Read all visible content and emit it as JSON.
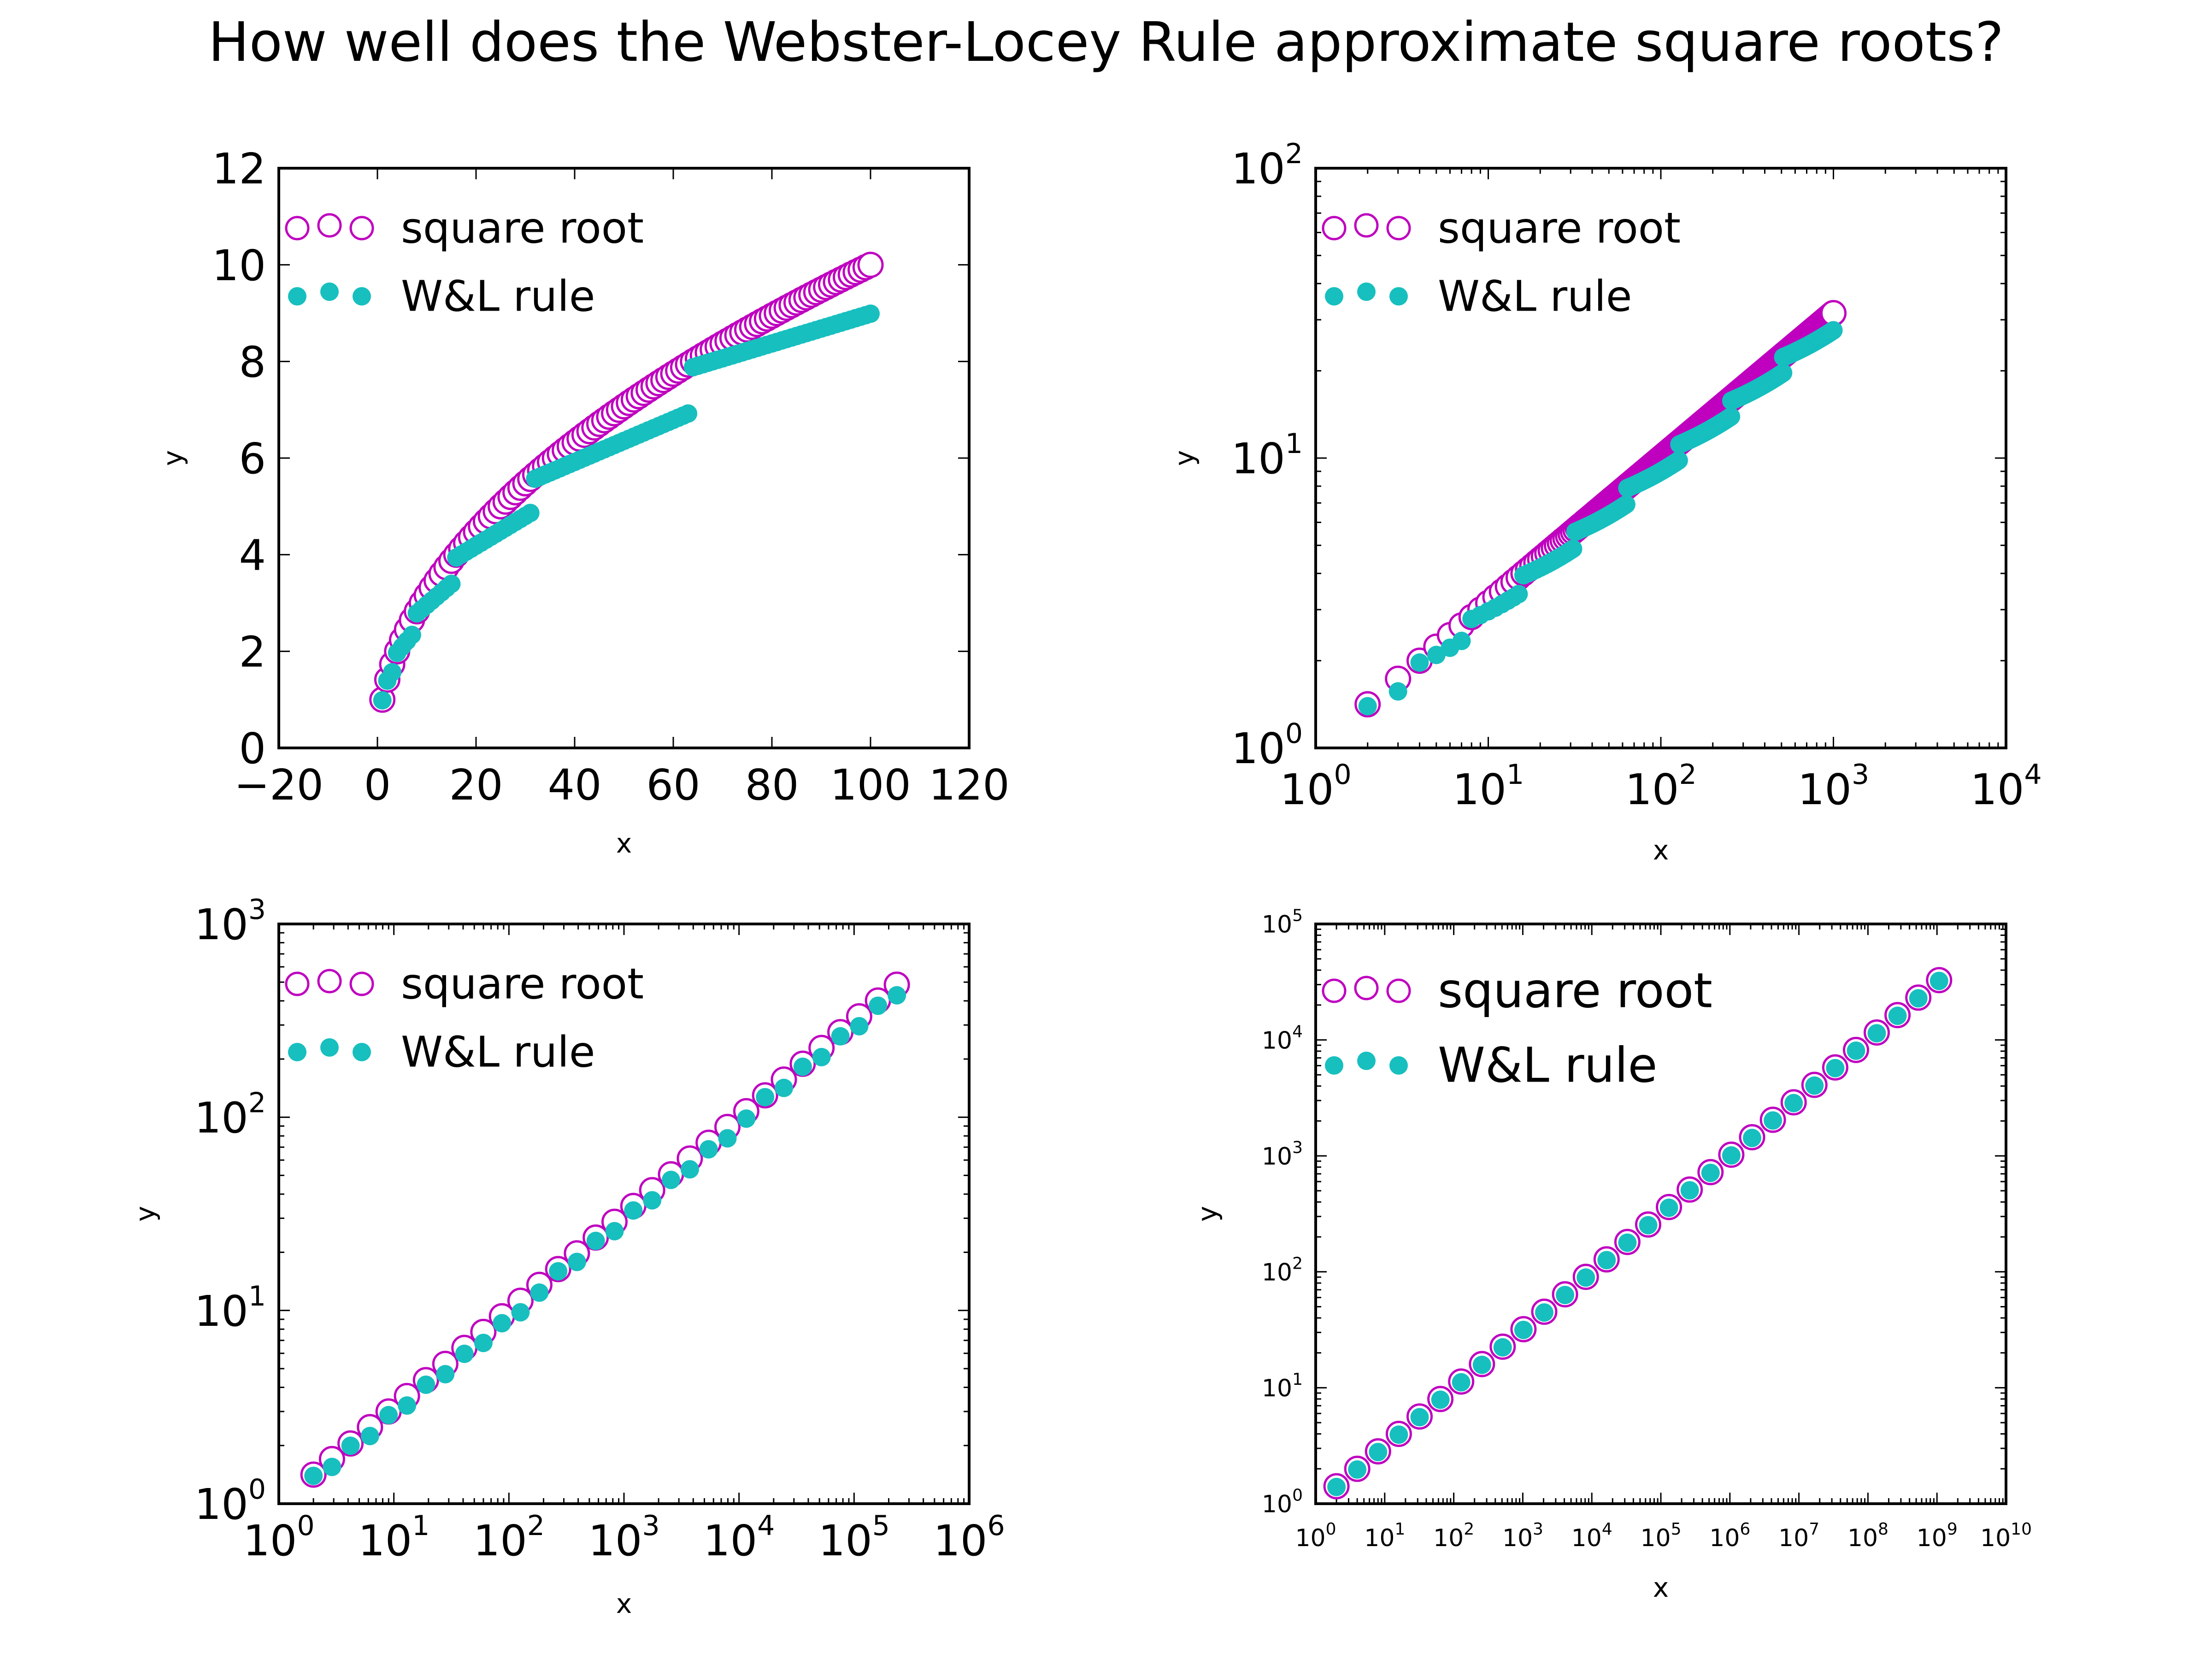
{
  "title": "How well does the Webster-Locey Rule approximate square roots?",
  "colors": {
    "sqrt_edge": "#bf00bf",
    "wl_fill": "#17bfbf",
    "axes": "#000000"
  },
  "chart_data": [
    {
      "type": "scatter",
      "xlabel": "x",
      "ylabel": "y",
      "xscale": "linear",
      "yscale": "linear",
      "xlim": [
        -20,
        120
      ],
      "ylim": [
        0,
        12
      ],
      "xticks": [
        -20,
        0,
        20,
        40,
        60,
        80,
        100,
        120
      ],
      "xtick_labels": [
        "−20",
        "0",
        "20",
        "40",
        "60",
        "80",
        "100",
        "120"
      ],
      "yticks": [
        0,
        2,
        4,
        6,
        8,
        10,
        12
      ],
      "ytick_labels": [
        "0",
        "2",
        "4",
        "6",
        "8",
        "10",
        "12"
      ],
      "legend": {
        "location": "upper-left",
        "entries": [
          "square root",
          "W&L rule"
        ]
      },
      "x_range": [
        1,
        100
      ],
      "series": [
        {
          "name": "square root",
          "marker": "hollow-circle",
          "formula": "y = sqrt(x)"
        },
        {
          "name": "W&L rule",
          "marker": "filled-circle",
          "formula": "Webster-Locey approximation"
        }
      ]
    },
    {
      "type": "scatter",
      "xlabel": "x",
      "ylabel": "y",
      "xscale": "log",
      "yscale": "log",
      "xlim": [
        1,
        10000
      ],
      "ylim": [
        1,
        100
      ],
      "xticks": [
        1,
        10,
        100,
        1000,
        10000
      ],
      "xtick_labels": [
        "10^0",
        "10^1",
        "10^2",
        "10^3",
        "10^4"
      ],
      "yticks": [
        1,
        10,
        100
      ],
      "ytick_labels": [
        "10^0",
        "10^1",
        "10^2"
      ],
      "legend": {
        "location": "upper-left",
        "entries": [
          "square root",
          "W&L rule"
        ]
      },
      "x_range": [
        2,
        1000
      ],
      "series": [
        {
          "name": "square root",
          "marker": "hollow-circle",
          "formula": "y = sqrt(x)"
        },
        {
          "name": "W&L rule",
          "marker": "filled-circle",
          "formula": "Webster-Locey approximation"
        }
      ]
    },
    {
      "type": "scatter",
      "xlabel": "x",
      "ylabel": "y",
      "xscale": "log",
      "yscale": "log",
      "xlim": [
        1,
        1000000
      ],
      "ylim": [
        1,
        1000
      ],
      "xticks": [
        1,
        10,
        100,
        1000,
        10000,
        100000,
        1000000
      ],
      "xtick_labels": [
        "10^0",
        "10^1",
        "10^2",
        "10^3",
        "10^4",
        "10^5",
        "10^6"
      ],
      "yticks": [
        1,
        10,
        100,
        1000
      ],
      "ytick_labels": [
        "10^0",
        "10^1",
        "10^2",
        "10^3"
      ],
      "legend": {
        "location": "upper-left",
        "entries": [
          "square root",
          "W&L rule"
        ]
      },
      "x_values": [
        2,
        2.9,
        4.2,
        6.2,
        9,
        13,
        19,
        28,
        41,
        60,
        87,
        126,
        184,
        268,
        390,
        568,
        828,
        1206,
        1758,
        2562,
        3734,
        5442,
        7930,
        11557,
        16843,
        24547,
        35774,
        52136,
        75982,
        110734,
        161380,
        235188
      ],
      "series": [
        {
          "name": "square root",
          "marker": "hollow-circle",
          "formula": "y = sqrt(x)"
        },
        {
          "name": "W&L rule",
          "marker": "filled-circle",
          "formula": "Webster-Locey approximation"
        }
      ]
    },
    {
      "type": "scatter",
      "xlabel": "x",
      "ylabel": "y",
      "xscale": "log",
      "yscale": "log",
      "xlim": [
        1,
        10000000000
      ],
      "ylim": [
        1,
        100000
      ],
      "xticks": [
        1,
        10,
        100,
        1000,
        10000,
        100000,
        1000000,
        10000000,
        100000000,
        1000000000,
        10000000000
      ],
      "xtick_labels": [
        "10^0",
        "10^1",
        "10^2",
        "10^3",
        "10^4",
        "10^5",
        "10^6",
        "10^7",
        "10^8",
        "10^9",
        "10^10"
      ],
      "yticks": [
        1,
        10,
        100,
        1000,
        10000,
        100000
      ],
      "ytick_labels": [
        "10^0",
        "10^1",
        "10^2",
        "10^3",
        "10^4",
        "10^5"
      ],
      "legend": {
        "location": "upper-left",
        "entries": [
          "square root",
          "W&L rule"
        ]
      },
      "x_values": [
        2,
        4,
        8,
        16,
        32,
        64,
        128,
        256,
        512,
        1024,
        2048,
        4096,
        8192,
        16384,
        32768,
        65536,
        131072,
        262144,
        524288,
        1048576,
        2097152,
        4194304,
        8388608,
        16777216,
        33554432,
        67108864,
        134217728,
        268435456,
        536870912,
        1073741824
      ],
      "series": [
        {
          "name": "square root",
          "marker": "hollow-circle",
          "formula": "y = sqrt(x)"
        },
        {
          "name": "W&L rule",
          "marker": "filled-circle",
          "formula": "Webster-Locey approximation"
        }
      ]
    }
  ]
}
